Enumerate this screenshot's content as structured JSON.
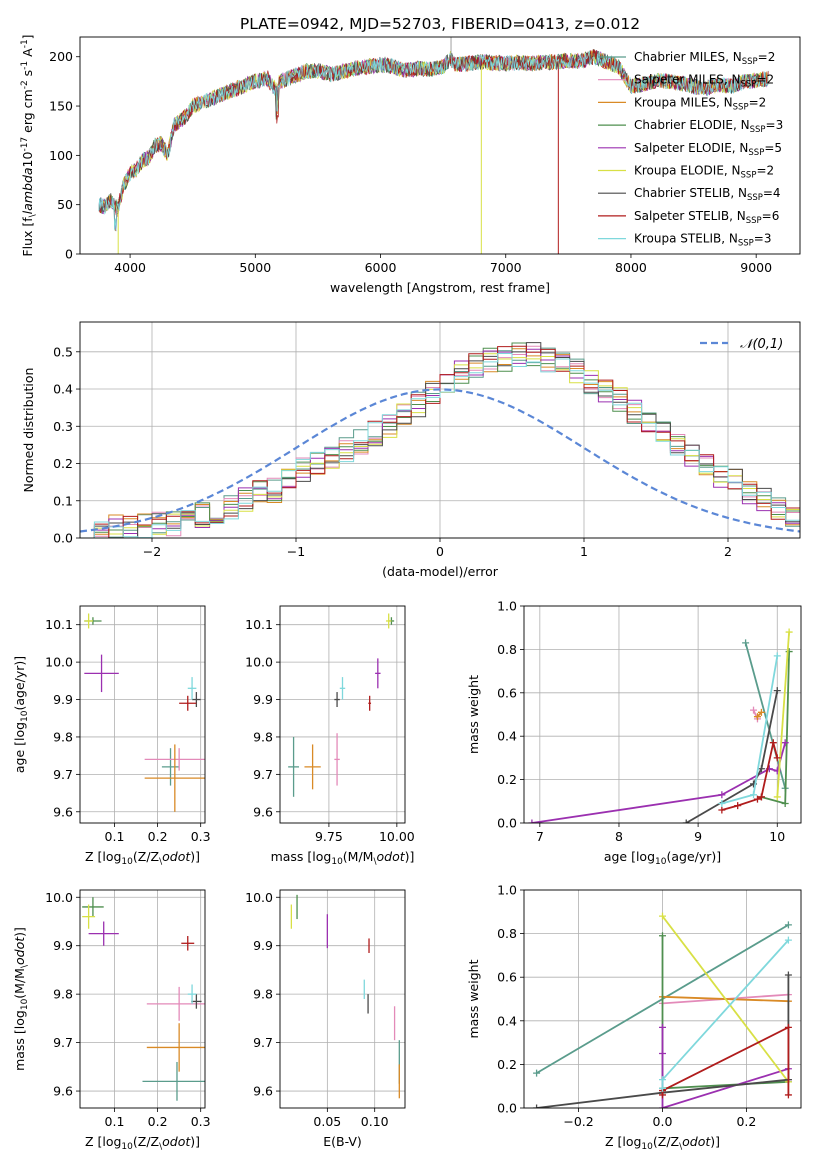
{
  "figure_title": "PLATE=0942, MJD=52703, FIBERID=0413, z=0.012",
  "models": [
    {
      "name": "Chabrier MILES, N$_{SSP}$=2",
      "legend": "Chabrier MILES, N",
      "sub": "SSP",
      "tail": "=2",
      "color": "#5a9c8c"
    },
    {
      "name": "Salpeter MILES, N$_{SSP}$=2",
      "legend": "Salpeter MILES, N",
      "sub": "SSP",
      "tail": "=2",
      "color": "#e38ab9"
    },
    {
      "name": "Kroupa MILES, N$_{SSP}$=2",
      "legend": "Kroupa MILES, N",
      "sub": "SSP",
      "tail": "=2",
      "color": "#d98a26"
    },
    {
      "name": "Chabrier ELODIE, N$_{SSP}$=3",
      "legend": "Chabrier ELODIE, N",
      "sub": "SSP",
      "tail": "=3",
      "color": "#4f8f4f"
    },
    {
      "name": "Salpeter ELODIE, N$_{SSP}$=5",
      "legend": "Salpeter ELODIE, N",
      "sub": "SSP",
      "tail": "=5",
      "color": "#9b30b0"
    },
    {
      "name": "Kroupa ELODIE, N$_{SSP}$=2",
      "legend": "Kroupa ELODIE, N",
      "sub": "SSP",
      "tail": "=2",
      "color": "#d8e045"
    },
    {
      "name": "Chabrier STELIB, N$_{SSP}$=4",
      "legend": "Chabrier STELIB, N",
      "sub": "SSP",
      "tail": "=4",
      "color": "#4a4a4a"
    },
    {
      "name": "Salpeter STELIB, N$_{SSP}$=6",
      "legend": "Salpeter STELIB, N",
      "sub": "SSP",
      "tail": "=6",
      "color": "#b01c1c"
    },
    {
      "name": "Kroupa STELIB, N$_{SSP}$=3",
      "legend": "Kroupa STELIB, N",
      "sub": "SSP",
      "tail": "=3",
      "color": "#7fd8dc"
    }
  ],
  "chart_data": [
    {
      "id": "spectrum",
      "type": "line",
      "xlabel": "wavelength [Angstrom, rest frame]",
      "ylabel": "Flux [f$_\\lambda$10$^{-17}$ erg cm$^{-2}$ s$^{-1}$ A$^{-1}$]",
      "ylabel_main": "Flux [f",
      "xlim": [
        3600,
        9350
      ],
      "ylim": [
        0,
        220
      ],
      "xticks": [
        4000,
        5000,
        6000,
        7000,
        8000,
        9000
      ],
      "yticks": [
        0,
        50,
        100,
        150,
        200
      ],
      "grid": false,
      "legend_position": "top-right",
      "envelope_x": [
        3750,
        3800,
        3850,
        3900,
        3950,
        4000,
        4050,
        4100,
        4150,
        4200,
        4250,
        4300,
        4350,
        4400,
        4450,
        4500,
        4600,
        4700,
        4800,
        4900,
        5000,
        5100,
        5150,
        5200,
        5300,
        5400,
        5500,
        5600,
        5700,
        5800,
        5900,
        6000,
        6100,
        6200,
        6300,
        6400,
        6500,
        6560,
        6600,
        6700,
        6800,
        6900,
        7000,
        7100,
        7200,
        7300,
        7400,
        7500,
        7600,
        7700,
        7800,
        7900,
        8000,
        8100,
        8200,
        8300,
        8400,
        8500,
        8600,
        8700,
        8800,
        8900,
        9000,
        9100
      ],
      "envelope_y": [
        50,
        48,
        55,
        45,
        70,
        82,
        85,
        95,
        98,
        110,
        112,
        100,
        130,
        135,
        140,
        150,
        155,
        160,
        165,
        170,
        175,
        178,
        168,
        175,
        180,
        185,
        186,
        182,
        185,
        188,
        190,
        192,
        190,
        186,
        188,
        187,
        190,
        198,
        192,
        193,
        195,
        194,
        193,
        194,
        193,
        194,
        195,
        196,
        195,
        200,
        195,
        190,
        170,
        172,
        176,
        175,
        173,
        170,
        168,
        172,
        170,
        175,
        176,
        178
      ],
      "dropouts": [
        {
          "model": "Kroupa ELODIE, N$_{SSP}$=2",
          "x": 3905,
          "from": 45
        },
        {
          "model": "Kroupa ELODIE, N$_{SSP}$=2",
          "x": 6805,
          "from": 192
        },
        {
          "model": "Salpeter STELIB, N$_{SSP}$=6",
          "x": 7420,
          "from": 194
        }
      ]
    },
    {
      "id": "residuals",
      "type": "histogram",
      "xlabel": "(data-model)/error",
      "ylabel": "Normed distribution",
      "xlim": [
        -2.5,
        2.5
      ],
      "ylim": [
        0,
        0.58
      ],
      "xticks": [
        -2,
        -1,
        0,
        1,
        2
      ],
      "yticks": [
        0.0,
        0.1,
        0.2,
        0.3,
        0.4,
        0.5
      ],
      "grid": true,
      "legend_position": "top-right",
      "reference_label": "$\\mathcal{N}(0,1)$",
      "reference_color": "#5b87d6",
      "bin_width": 0.1,
      "bin_start": -2.5,
      "bin_heights_typical": [
        0.02,
        0.02,
        0.03,
        0.03,
        0.03,
        0.04,
        0.04,
        0.05,
        0.06,
        0.07,
        0.08,
        0.1,
        0.12,
        0.13,
        0.16,
        0.18,
        0.2,
        0.21,
        0.24,
        0.26,
        0.28,
        0.3,
        0.33,
        0.36,
        0.39,
        0.42,
        0.45,
        0.46,
        0.48,
        0.48,
        0.49,
        0.49,
        0.48,
        0.47,
        0.45,
        0.42,
        0.4,
        0.37,
        0.34,
        0.31,
        0.28,
        0.25,
        0.22,
        0.2,
        0.17,
        0.15,
        0.12,
        0.1,
        0.08,
        0.06
      ]
    },
    {
      "id": "age-vs-Z",
      "type": "scatter",
      "xlabel": "Z [log$_{10}$(Z/Z$_\\odot$)]",
      "ylabel": "age [log$_{10}$(age/yr)]",
      "xlim": [
        0.02,
        0.31
      ],
      "ylim": [
        9.57,
        10.15
      ],
      "xticks": [
        0.1,
        0.2,
        0.3
      ],
      "yticks": [
        9.6,
        9.7,
        9.8,
        9.9,
        10.0,
        10.1
      ],
      "grid": true,
      "points": [
        {
          "model": "Chabrier MILES, N$_{SSP}$=2",
          "x": 0.23,
          "y": 9.72,
          "xerr": 0.02,
          "yerr": 0.05
        },
        {
          "model": "Salpeter MILES, N$_{SSP}$=2",
          "x": 0.25,
          "y": 9.74,
          "xerr": 0.08,
          "yerr": 0.03
        },
        {
          "model": "Kroupa MILES, N$_{SSP}$=2",
          "x": 0.24,
          "y": 9.69,
          "xerr": 0.07,
          "yerr": 0.09
        },
        {
          "model": "Chabrier ELODIE, N$_{SSP}$=3",
          "x": 0.05,
          "y": 10.11,
          "xerr": 0.02,
          "yerr": 0.01
        },
        {
          "model": "Salpeter ELODIE, N$_{SSP}$=5",
          "x": 0.07,
          "y": 9.97,
          "xerr": 0.04,
          "yerr": 0.05
        },
        {
          "model": "Kroupa ELODIE, N$_{SSP}$=2",
          "x": 0.04,
          "y": 10.11,
          "xerr": 0.01,
          "yerr": 0.02
        },
        {
          "model": "Chabrier STELIB, N$_{SSP}$=4",
          "x": 0.29,
          "y": 9.9,
          "xerr": 0.01,
          "yerr": 0.02
        },
        {
          "model": "Salpeter STELIB, N$_{SSP}$=6",
          "x": 0.27,
          "y": 9.89,
          "xerr": 0.02,
          "yerr": 0.02
        },
        {
          "model": "Kroupa STELIB, N$_{SSP}$=3",
          "x": 0.28,
          "y": 9.93,
          "xerr": 0.01,
          "yerr": 0.03
        }
      ]
    },
    {
      "id": "age-vs-mass",
      "type": "scatter",
      "xlabel": "mass [log$_{10}$(M/M$_\\odot$)]",
      "ylabel": "",
      "xlim": [
        9.57,
        10.03
      ],
      "ylim": [
        9.57,
        10.15
      ],
      "xticks": [
        9.75,
        10.0
      ],
      "yticks": [
        9.6,
        9.7,
        9.8,
        9.9,
        10.0,
        10.1
      ],
      "grid": true,
      "points": [
        {
          "model": "Chabrier MILES, N$_{SSP}$=2",
          "x": 9.62,
          "y": 9.72,
          "xerr": 0.02,
          "yerr": 0.08
        },
        {
          "model": "Salpeter MILES, N$_{SSP}$=2",
          "x": 9.78,
          "y": 9.74,
          "xerr": 0.01,
          "yerr": 0.07
        },
        {
          "model": "Kroupa MILES, N$_{SSP}$=2",
          "x": 9.69,
          "y": 9.72,
          "xerr": 0.03,
          "yerr": 0.06
        },
        {
          "model": "Chabrier ELODIE, N$_{SSP}$=3",
          "x": 9.98,
          "y": 10.11,
          "xerr": 0.01,
          "yerr": 0.01
        },
        {
          "model": "Salpeter ELODIE, N$_{SSP}$=5",
          "x": 9.93,
          "y": 9.97,
          "xerr": 0.01,
          "yerr": 0.04
        },
        {
          "model": "Kroupa ELODIE, N$_{SSP}$=2",
          "x": 9.97,
          "y": 10.11,
          "xerr": 0.01,
          "yerr": 0.02
        },
        {
          "model": "Chabrier STELIB, N$_{SSP}$=4",
          "x": 9.78,
          "y": 9.9,
          "xerr": 0.01,
          "yerr": 0.02
        },
        {
          "model": "Salpeter STELIB, N$_{SSP}$=6",
          "x": 9.9,
          "y": 9.89,
          "xerr": 0.005,
          "yerr": 0.02
        },
        {
          "model": "Kroupa STELIB, N$_{SSP}$=3",
          "x": 9.8,
          "y": 9.93,
          "xerr": 0.01,
          "yerr": 0.03
        }
      ]
    },
    {
      "id": "weight-vs-age",
      "type": "line",
      "xlabel": "age  [log$_{10}$(age/yr)]",
      "ylabel": "mass weight",
      "xlim": [
        6.8,
        10.3
      ],
      "ylim": [
        0,
        1
      ],
      "xticks": [
        7,
        8,
        9,
        10
      ],
      "yticks": [
        0.0,
        0.2,
        0.4,
        0.6,
        0.8,
        1.0
      ],
      "grid": true,
      "series": [
        {
          "model": "Chabrier MILES, N$_{SSP}$=2",
          "x": [
            9.6,
            10.1
          ],
          "y": [
            0.83,
            0.16
          ]
        },
        {
          "model": "Salpeter MILES, N$_{SSP}$=2",
          "x": [
            9.7,
            9.75
          ],
          "y": [
            0.52,
            0.48
          ]
        },
        {
          "model": "Kroupa MILES, N$_{SSP}$=2",
          "x": [
            9.75,
            9.8
          ],
          "y": [
            0.49,
            0.51
          ]
        },
        {
          "model": "Chabrier ELODIE, N$_{SSP}$=3",
          "x": [
            9.8,
            10.1,
            10.15
          ],
          "y": [
            0.12,
            0.09,
            0.79
          ]
        },
        {
          "model": "Salpeter ELODIE, N$_{SSP}$=5",
          "x": [
            6.9,
            9.3,
            9.9,
            10.0,
            10.1
          ],
          "y": [
            0.0,
            0.13,
            0.25,
            0.24,
            0.37
          ]
        },
        {
          "model": "Kroupa ELODIE, N$_{SSP}$=2",
          "x": [
            10.0,
            10.15
          ],
          "y": [
            0.12,
            0.88
          ]
        },
        {
          "model": "Chabrier STELIB, N$_{SSP}$=4",
          "x": [
            8.85,
            9.7,
            9.8,
            10.0
          ],
          "y": [
            0.0,
            0.18,
            0.25,
            0.61
          ]
        },
        {
          "model": "Salpeter STELIB, N$_{SSP}$=6",
          "x": [
            9.3,
            9.5,
            9.75,
            9.8,
            9.95,
            10.0
          ],
          "y": [
            0.06,
            0.08,
            0.11,
            0.12,
            0.37,
            0.3
          ]
        },
        {
          "model": "Kroupa STELIB, N$_{SSP}$=3",
          "x": [
            9.3,
            9.7,
            10.0
          ],
          "y": [
            0.09,
            0.13,
            0.77
          ]
        }
      ]
    },
    {
      "id": "mass-vs-Z",
      "type": "scatter",
      "xlabel": "Z [log$_{10}$(Z/Z$_\\odot$)]",
      "ylabel": "mass [log$_{10}$(M/M$_\\odot$)]",
      "xlim": [
        0.02,
        0.31
      ],
      "ylim": [
        9.565,
        10.015
      ],
      "xticks": [
        0.1,
        0.2,
        0.3
      ],
      "yticks": [
        9.6,
        9.7,
        9.8,
        9.9,
        10.0
      ],
      "grid": true,
      "points": [
        {
          "model": "Chabrier MILES, N$_{SSP}$=2",
          "x": 0.245,
          "y": 9.62,
          "xerr": 0.08,
          "yerr": 0.04
        },
        {
          "model": "Salpeter MILES, N$_{SSP}$=2",
          "x": 0.25,
          "y": 9.78,
          "xerr": 0.075,
          "yerr": 0.035
        },
        {
          "model": "Kroupa MILES, N$_{SSP}$=2",
          "x": 0.25,
          "y": 9.69,
          "xerr": 0.075,
          "yerr": 0.05
        },
        {
          "model": "Chabrier ELODIE, N$_{SSP}$=3",
          "x": 0.05,
          "y": 9.98,
          "xerr": 0.025,
          "yerr": 0.02
        },
        {
          "model": "Salpeter ELODIE, N$_{SSP}$=5",
          "x": 0.075,
          "y": 9.925,
          "xerr": 0.035,
          "yerr": 0.025
        },
        {
          "model": "Kroupa ELODIE, N$_{SSP}$=2",
          "x": 0.04,
          "y": 9.96,
          "xerr": 0.015,
          "yerr": 0.025
        },
        {
          "model": "Chabrier STELIB, N$_{SSP}$=4",
          "x": 0.29,
          "y": 9.785,
          "xerr": 0.012,
          "yerr": 0.015
        },
        {
          "model": "Salpeter STELIB, N$_{SSP}$=6",
          "x": 0.27,
          "y": 9.905,
          "xerr": 0.015,
          "yerr": 0.015
        },
        {
          "model": "Kroupa STELIB, N$_{SSP}$=3",
          "x": 0.28,
          "y": 9.8,
          "xerr": 0.01,
          "yerr": 0.02
        }
      ]
    },
    {
      "id": "mass-vs-ebv",
      "type": "scatter",
      "xlabel": "E(B-V)",
      "ylabel": "",
      "xlim": [
        0.0,
        0.132
      ],
      "ylim": [
        9.565,
        10.015
      ],
      "xticks": [
        0.05,
        0.1
      ],
      "yticks": [
        9.6,
        9.7,
        9.8,
        9.9,
        10.0
      ],
      "grid": true,
      "points": [
        {
          "model": "Chabrier MILES, N$_{SSP}$=2",
          "x": 0.126,
          "y": 9.66,
          "xerr": 0.0,
          "yerr": 0.045
        },
        {
          "model": "Salpeter MILES, N$_{SSP}$=2",
          "x": 0.121,
          "y": 9.74,
          "xerr": 0.0,
          "yerr": 0.035
        },
        {
          "model": "Kroupa MILES, N$_{SSP}$=2",
          "x": 0.126,
          "y": 9.62,
          "xerr": 0.0,
          "yerr": 0.035
        },
        {
          "model": "Chabrier ELODIE, N$_{SSP}$=3",
          "x": 0.018,
          "y": 9.98,
          "xerr": 0.0,
          "yerr": 0.025
        },
        {
          "model": "Salpeter ELODIE, N$_{SSP}$=5",
          "x": 0.05,
          "y": 9.93,
          "xerr": 0.0,
          "yerr": 0.035
        },
        {
          "model": "Kroupa ELODIE, N$_{SSP}$=2",
          "x": 0.012,
          "y": 9.96,
          "xerr": 0.0,
          "yerr": 0.025
        },
        {
          "model": "Chabrier STELIB, N$_{SSP}$=4",
          "x": 0.093,
          "y": 9.78,
          "xerr": 0.0,
          "yerr": 0.02
        },
        {
          "model": "Salpeter STELIB, N$_{SSP}$=6",
          "x": 0.094,
          "y": 9.9,
          "xerr": 0.0,
          "yerr": 0.015
        },
        {
          "model": "Kroupa STELIB, N$_{SSP}$=3",
          "x": 0.089,
          "y": 9.81,
          "xerr": 0.0,
          "yerr": 0.02
        }
      ]
    },
    {
      "id": "weight-vs-Z",
      "type": "line",
      "xlabel": "Z [log$_{10}$(Z/Z$_\\odot$)]",
      "ylabel": "mass weight",
      "xlim": [
        -0.33,
        0.33
      ],
      "ylim": [
        0,
        1
      ],
      "xticks": [
        -0.2,
        0.0,
        0.2
      ],
      "yticks": [
        0.0,
        0.2,
        0.4,
        0.6,
        0.8,
        1.0
      ],
      "grid": true,
      "series": [
        {
          "model": "Chabrier MILES, N$_{SSP}$=2",
          "x": [
            -0.3,
            0.3
          ],
          "y": [
            0.16,
            0.84
          ]
        },
        {
          "model": "Salpeter MILES, N$_{SSP}$=2",
          "x": [
            0.0,
            0.3
          ],
          "y": [
            0.48,
            0.52
          ]
        },
        {
          "model": "Kroupa MILES, N$_{SSP}$=2",
          "x": [
            0.0,
            0.3
          ],
          "y": [
            0.51,
            0.49
          ]
        },
        {
          "model": "Chabrier ELODIE, N$_{SSP}$=3",
          "x": [
            0.0,
            0.0,
            0.3
          ],
          "y": [
            0.79,
            0.09,
            0.12
          ]
        },
        {
          "model": "Salpeter ELODIE, N$_{SSP}$=5",
          "x": [
            0.0,
            0.0,
            0.0,
            0.3,
            0.3
          ],
          "y": [
            0.37,
            0.25,
            0.0,
            0.18,
            0.13
          ]
        },
        {
          "model": "Kroupa ELODIE, N$_{SSP}$=2",
          "x": [
            0.0,
            0.3
          ],
          "y": [
            0.88,
            0.12
          ]
        },
        {
          "model": "Chabrier STELIB, N$_{SSP}$=4",
          "x": [
            -0.3,
            0.0,
            0.3,
            0.3
          ],
          "y": [
            0.0,
            0.07,
            0.13,
            0.61
          ]
        },
        {
          "model": "Salpeter STELIB, N$_{SSP}$=6",
          "x": [
            0.0,
            0.0,
            0.3,
            0.3
          ],
          "y": [
            0.06,
            0.08,
            0.37,
            0.06
          ]
        },
        {
          "model": "Kroupa STELIB, N$_{SSP}$=3",
          "x": [
            0.0,
            0.0,
            0.3
          ],
          "y": [
            0.09,
            0.13,
            0.77
          ]
        }
      ]
    }
  ]
}
